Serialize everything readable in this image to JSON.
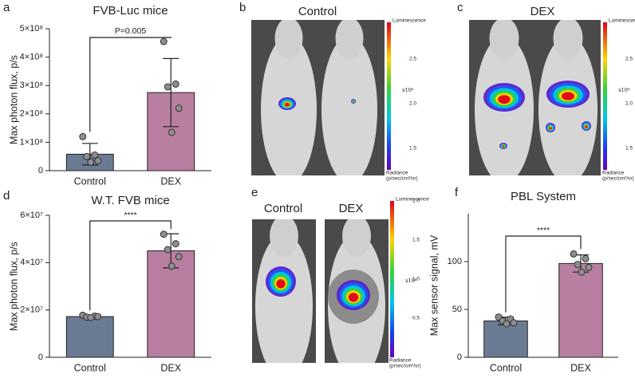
{
  "chart_data": [
    {
      "type": "bar",
      "panel": "a",
      "title": "FVB-Luc mice",
      "ylabel": "Max photon flux, p/s",
      "categories": [
        "Control",
        "DEX"
      ],
      "colors": [
        "#6b7b93",
        "#b87fa0"
      ],
      "values": [
        58000000,
        275000000
      ],
      "errors": [
        38000000,
        120000000
      ],
      "points": [
        [
          120000000,
          55000000,
          50000000,
          35000000,
          30000000
        ],
        [
          455000000,
          305000000,
          295000000,
          220000000,
          135000000
        ]
      ],
      "annotation": "P=0.005",
      "ylim": [
        0,
        500000000
      ],
      "yticks": [
        0,
        {
          "value": 100000000,
          "label": "1×10⁸"
        },
        {
          "value": 200000000,
          "label": "2×10⁸"
        },
        {
          "value": 300000000,
          "label": "3×10⁸"
        },
        {
          "value": 400000000,
          "label": "4×10⁸"
        },
        {
          "value": 500000000,
          "label": "5×10⁸"
        }
      ]
    },
    {
      "type": "bar",
      "panel": "d",
      "title": "W.T. FVB mice",
      "ylabel": "Max photon flux, p/s",
      "categories": [
        "Control",
        "DEX"
      ],
      "colors": [
        "#6b7b93",
        "#b87fa0"
      ],
      "values": [
        17200000,
        45000000
      ],
      "errors": [
        600000,
        7200000
      ],
      "points": [
        [
          17800000,
          17400000,
          17000000,
          17200000,
          16800000
        ],
        [
          52000000,
          48000000,
          45500000,
          42500000,
          38500000
        ]
      ],
      "annotation": "****",
      "ylim": [
        0,
        60000000
      ],
      "yticks": [
        0,
        {
          "value": 20000000,
          "label": "2×10⁷"
        },
        {
          "value": 40000000,
          "label": "4×10⁷"
        },
        {
          "value": 60000000,
          "label": "6×10⁷"
        }
      ]
    },
    {
      "type": "bar",
      "panel": "f",
      "title": "PBL System",
      "ylabel": "Max sensor signal, mV",
      "categories": [
        "Control",
        "DEX"
      ],
      "colors": [
        "#6b7b93",
        "#b87fa0"
      ],
      "values": [
        38,
        98
      ],
      "errors": [
        4,
        9
      ],
      "points": [
        [
          42,
          40,
          38,
          36,
          35
        ],
        [
          108,
          103,
          97,
          94,
          89
        ]
      ],
      "annotation": "****",
      "ylim": [
        0,
        150
      ],
      "yticks": [
        0,
        50,
        100
      ]
    }
  ],
  "images": [
    {
      "panel": "b",
      "titles": [
        "Control"
      ],
      "colorbar": {
        "title": "Luminescence",
        "ticks": [
          "2.5",
          "2.0",
          "1.5"
        ],
        "scale": "x10⁶",
        "unit_title": "Radiance",
        "unit": "(p/sec/cm²/sr)"
      }
    },
    {
      "panel": "c",
      "titles": [
        "DEX"
      ],
      "colorbar": {
        "title": "Luminescence",
        "ticks": [
          "2.5",
          "2.0",
          "1.5"
        ],
        "scale": "x10⁶",
        "unit_title": "Radiance",
        "unit": "(p/sec/cm²/sr)"
      }
    },
    {
      "panel": "e",
      "titles": [
        "Control",
        "DEX"
      ],
      "colorbar": {
        "title": "Luminescence",
        "ticks": [
          "2.0",
          "1.5",
          "1.0",
          "0.5"
        ],
        "scale": "x10⁶",
        "unit_title": "Radiance",
        "unit": "(p/sec/cm²/sr)"
      }
    }
  ]
}
